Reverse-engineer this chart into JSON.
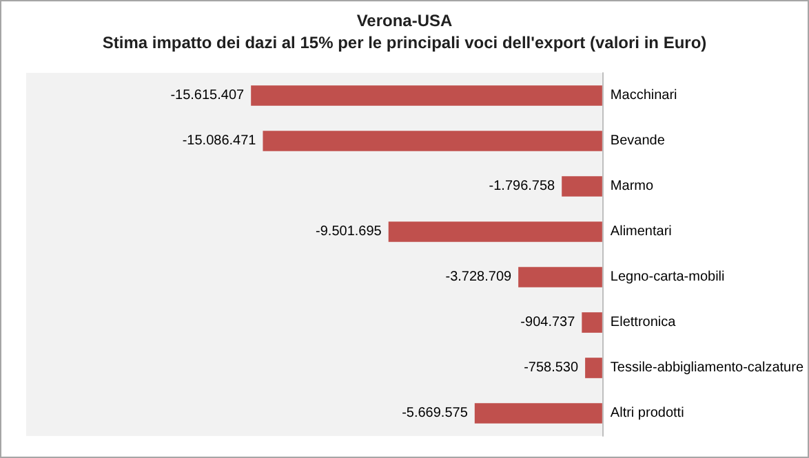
{
  "chart_data": {
    "type": "bar",
    "orientation": "horizontal",
    "title": "Verona-USA",
    "subtitle": "Stima impatto dei dazi al 15% per le principali voci dell'export (valori in Euro)",
    "categories": [
      "Macchinari",
      "Bevande",
      "Marmo",
      "Alimentari",
      "Legno-carta-mobili",
      "Elettronica",
      "Tessile-abbigliamento-calzature",
      "Altri prodotti"
    ],
    "values": [
      -15615407,
      -15086471,
      -1796758,
      -9501695,
      -3728709,
      -904737,
      -758530,
      -5669575
    ],
    "value_labels": [
      "-15.615.407",
      "-15.086.471",
      "-1.796.758",
      "-9.501.695",
      "-3.728.709",
      "-904.737",
      "-758.530",
      "-5.669.575"
    ],
    "color": "#c0504d"
  }
}
